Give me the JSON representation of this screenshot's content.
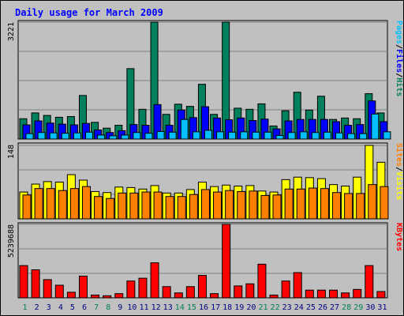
{
  "chart_data": [
    {
      "type": "bar",
      "title": "Daily usage for March 2009",
      "categories": [
        "1",
        "2",
        "3",
        "4",
        "5",
        "6",
        "7",
        "8",
        "9",
        "10",
        "11",
        "12",
        "13",
        "14",
        "15",
        "16",
        "17",
        "18",
        "19",
        "20",
        "21",
        "22",
        "23",
        "24",
        "25",
        "26",
        "27",
        "28",
        "29",
        "30",
        "31"
      ],
      "weekend_days": [
        "1",
        "7",
        "8",
        "14",
        "15",
        "21",
        "22",
        "28",
        "29"
      ],
      "ylim": [
        0,
        3221
      ],
      "y_top_label": "3221",
      "side_labels": [
        "Pages",
        "Files",
        "Hits"
      ],
      "series": [
        {
          "name": "Hits",
          "color": "#00805c",
          "values": [
            560,
            720,
            650,
            600,
            620,
            1200,
            460,
            300,
            380,
            1940,
            820,
            3221,
            680,
            960,
            900,
            1510,
            680,
            3221,
            850,
            820,
            970,
            360,
            780,
            1290,
            800,
            1180,
            540,
            580,
            560,
            1250,
            720
          ]
        },
        {
          "name": "Files",
          "color": "#0000ff",
          "values": [
            390,
            500,
            440,
            410,
            390,
            430,
            250,
            180,
            230,
            400,
            380,
            950,
            380,
            800,
            590,
            890,
            580,
            530,
            580,
            510,
            550,
            280,
            500,
            540,
            540,
            540,
            480,
            380,
            400,
            1050,
            480
          ]
        },
        {
          "name": "Pages",
          "color": "#00c0ff",
          "values": [
            150,
            180,
            170,
            160,
            170,
            190,
            110,
            90,
            110,
            180,
            160,
            210,
            190,
            540,
            200,
            240,
            200,
            190,
            200,
            190,
            190,
            100,
            180,
            200,
            180,
            190,
            170,
            150,
            150,
            690,
            200
          ]
        }
      ]
    },
    {
      "type": "bar",
      "categories": [
        "1",
        "2",
        "3",
        "4",
        "5",
        "6",
        "7",
        "8",
        "9",
        "10",
        "11",
        "12",
        "13",
        "14",
        "15",
        "16",
        "17",
        "18",
        "19",
        "20",
        "21",
        "22",
        "23",
        "24",
        "25",
        "26",
        "27",
        "28",
        "29",
        "30",
        "31"
      ],
      "ylim": [
        0,
        148
      ],
      "y_top_label": "148",
      "side_labels": [
        "Sites",
        "Visits"
      ],
      "series": [
        {
          "name": "Visits",
          "color": "#ffff00",
          "values": [
            54,
            70,
            75,
            74,
            89,
            78,
            55,
            53,
            64,
            63,
            60,
            67,
            52,
            52,
            59,
            74,
            65,
            68,
            66,
            67,
            56,
            54,
            79,
            84,
            83,
            81,
            69,
            66,
            84,
            148,
            114
          ]
        },
        {
          "name": "Sites",
          "color": "#ff8000",
          "values": [
            48,
            61,
            61,
            57,
            61,
            65,
            45,
            41,
            52,
            52,
            54,
            54,
            45,
            45,
            49,
            59,
            54,
            57,
            55,
            56,
            47,
            48,
            60,
            60,
            62,
            61,
            53,
            51,
            51,
            69,
            65
          ]
        }
      ]
    },
    {
      "type": "bar",
      "categories": [
        "1",
        "2",
        "3",
        "4",
        "5",
        "6",
        "7",
        "8",
        "9",
        "10",
        "11",
        "12",
        "13",
        "14",
        "15",
        "16",
        "17",
        "18",
        "19",
        "20",
        "21",
        "22",
        "23",
        "24",
        "25",
        "26",
        "27",
        "28",
        "29",
        "30",
        "31"
      ],
      "ylim": [
        0,
        5239688
      ],
      "y_top_label": "5239688",
      "side_labels": [
        "KBytes"
      ],
      "series": [
        {
          "name": "KBytes",
          "color": "#ff0000",
          "values": [
            2300000,
            2000000,
            1300000,
            900000,
            400000,
            1550000,
            200000,
            150000,
            300000,
            1200000,
            1400000,
            2500000,
            800000,
            350000,
            800000,
            1600000,
            300000,
            5239688,
            850000,
            1000000,
            2400000,
            200000,
            1200000,
            1800000,
            550000,
            550000,
            550000,
            350000,
            600000,
            2300000,
            450000
          ]
        }
      ]
    }
  ],
  "colors": {
    "background": "#c0c0c0",
    "title": "#0000ff",
    "weekday_label": "#000080",
    "weekend_label": "#00805c",
    "grid": "#808080"
  }
}
